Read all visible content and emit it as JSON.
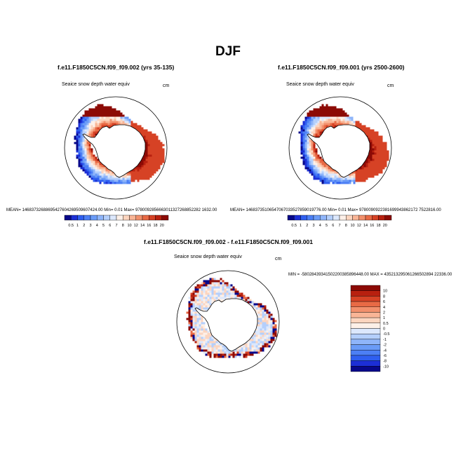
{
  "title": "DJF",
  "panels": [
    {
      "title": "f.e11.F1850C5CN.f09_f09.002 (yrs 35-135)",
      "variable": "Seaice snow depth water equiv",
      "units": "cm",
      "stats": "MEAN= 14683732688695427604269509607424.00   Min=   0.01   Max= 9780092856663011327268852282 1632.00"
    },
    {
      "title": "f.e11.F1850C5CN.f09_f09.001 (yrs 2500-2600)",
      "variable": "Seaice snow depth water equiv",
      "units": "cm",
      "stats": "MEAN= 14683735106547067033527859019776.00   Min=   0.01   Max= 9780090922381699943862172 7522816.00"
    },
    {
      "title": "f.e11.F1850C5CN.f09_f09.002 - f.e11.F1850C5CN.f09_f09.001",
      "variable": "Seaice snow depth water equiv",
      "units": "cm",
      "stats": "MIN = -58028439341502200385896448.00 MAX = 435213295061266502894 22336.00"
    }
  ],
  "colorbar_abs": {
    "levels": [
      "0.5",
      "1",
      "2",
      "3",
      "4",
      "5",
      "6",
      "7",
      "8",
      "10",
      "12",
      "14",
      "16",
      "18",
      "20"
    ],
    "colors": [
      "#08088a",
      "#1c2fd6",
      "#2f5ff0",
      "#4c7ff5",
      "#6a9bf7",
      "#8fb5fa",
      "#b4cffc",
      "#dce8fd",
      "#fdf0e8",
      "#fcd5bf",
      "#f9b596",
      "#f2906c",
      "#e86a45",
      "#d64225",
      "#b8200f",
      "#8c0a05"
    ]
  },
  "colorbar_diff": {
    "levels": [
      "10",
      "8",
      "6",
      "4",
      "2",
      "1",
      "0.5",
      "0",
      "-0.5",
      "-1",
      "-2",
      "-4",
      "-6",
      "-8",
      "-10"
    ],
    "colors": [
      "#8c0a05",
      "#b8200f",
      "#d64225",
      "#e86a45",
      "#f2906c",
      "#f9b596",
      "#fcd5bf",
      "#fdf0e8",
      "#dce8fd",
      "#b4cffc",
      "#8fb5fa",
      "#6a9bf7",
      "#4c7ff5",
      "#2f5ff0",
      "#1c2fd6",
      "#08088a"
    ]
  }
}
